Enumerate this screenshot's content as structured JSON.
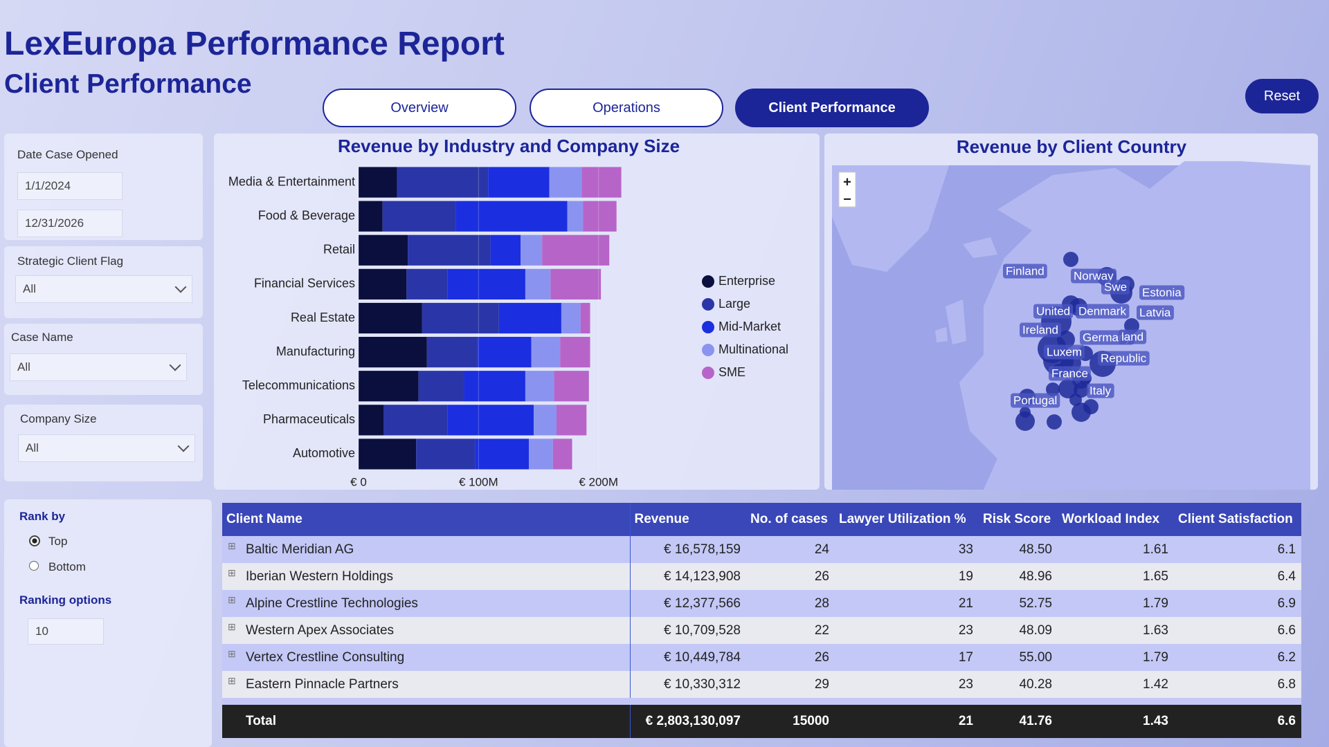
{
  "header": {
    "title": "LexEuropa Performance Report",
    "subtitle": "Client Performance"
  },
  "tabs": [
    "Overview",
    "Operations",
    "Client Performance"
  ],
  "reset": "Reset",
  "filters": {
    "date": {
      "label": "Date Case Opened",
      "start": "1/1/2024",
      "end": "12/31/2026"
    },
    "strategic": {
      "label": "Strategic Client Flag",
      "value": "All"
    },
    "case": {
      "label": "Case Name",
      "value": "All"
    },
    "size": {
      "label": "Company Size",
      "value": "All"
    }
  },
  "rank": {
    "label": "Rank by",
    "options": [
      "Top",
      "Bottom"
    ],
    "options_label": "Ranking options",
    "count": 10
  },
  "chart_data": {
    "type": "bar",
    "orientation": "horizontal",
    "stacked": true,
    "title": "Revenue by Industry and Company Size",
    "categories": [
      "Media & Entertainment",
      "Food & Beverage",
      "Retail",
      "Financial Services",
      "Real Estate",
      "Manufacturing",
      "Telecommunications",
      "Pharmaceuticals",
      "Automotive"
    ],
    "series": [
      {
        "name": "Enterprise",
        "color": "#0b0f3d",
        "values": [
          32,
          20,
          41,
          40,
          53,
          57,
          50,
          21,
          48
        ]
      },
      {
        "name": "Large",
        "color": "#2a36a8",
        "values": [
          76,
          61,
          69,
          34,
          64,
          42,
          38,
          53,
          49
        ]
      },
      {
        "name": "Mid-Market",
        "color": "#1b2fe0",
        "values": [
          51,
          93,
          25,
          65,
          52,
          45,
          51,
          72,
          45
        ]
      },
      {
        "name": "Multinational",
        "color": "#8a94f0",
        "values": [
          27,
          13,
          18,
          21,
          16,
          24,
          24,
          19,
          20
        ]
      },
      {
        "name": "SME",
        "color": "#b764c8",
        "values": [
          33,
          28,
          56,
          42,
          8,
          25,
          29,
          25,
          16
        ]
      }
    ],
    "xlim": [
      0,
      225
    ],
    "xticks": [
      {
        "value": 0,
        "label": "€ 0"
      },
      {
        "value": 100,
        "label": "€ 100M"
      },
      {
        "value": 200,
        "label": "€ 200M"
      }
    ],
    "legend": "right"
  },
  "map": {
    "title": "Revenue by Client Country",
    "zoom_in": "+",
    "zoom_out": "−",
    "labels": [
      "Norway",
      "Finland",
      "Swe",
      "Estonia",
      "United",
      "Denmark",
      "Latvia",
      "Ireland",
      "Germany",
      "land",
      "Luxem",
      "Republic",
      "France",
      "Italy",
      "Portugal"
    ]
  },
  "table": {
    "columns": [
      "Client Name",
      "Revenue",
      "No. of cases",
      "Lawyer Utilization %",
      "Risk Score",
      "Workload Index",
      "Client Satisfaction"
    ],
    "rows": [
      [
        "Baltic Meridian AG",
        "€ 16,578,159",
        "24",
        "33",
        "48.50",
        "1.61",
        "6.1"
      ],
      [
        "Iberian Western Holdings",
        "€ 14,123,908",
        "26",
        "19",
        "48.96",
        "1.65",
        "6.4"
      ],
      [
        "Alpine Crestline Technologies",
        "€ 12,377,566",
        "28",
        "21",
        "52.75",
        "1.79",
        "6.9"
      ],
      [
        "Western Apex Associates",
        "€ 10,709,528",
        "22",
        "23",
        "48.09",
        "1.63",
        "6.6"
      ],
      [
        "Vertex Crestline Consulting",
        "€ 10,449,784",
        "26",
        "17",
        "55.00",
        "1.79",
        "6.2"
      ],
      [
        "Eastern Pinnacle Partners",
        "€ 10,330,312",
        "29",
        "23",
        "40.28",
        "1.42",
        "6.8"
      ]
    ],
    "total": [
      "Total",
      "€ 2,803,130,097",
      "15000",
      "21",
      "41.76",
      "1.43",
      "6.6"
    ]
  }
}
